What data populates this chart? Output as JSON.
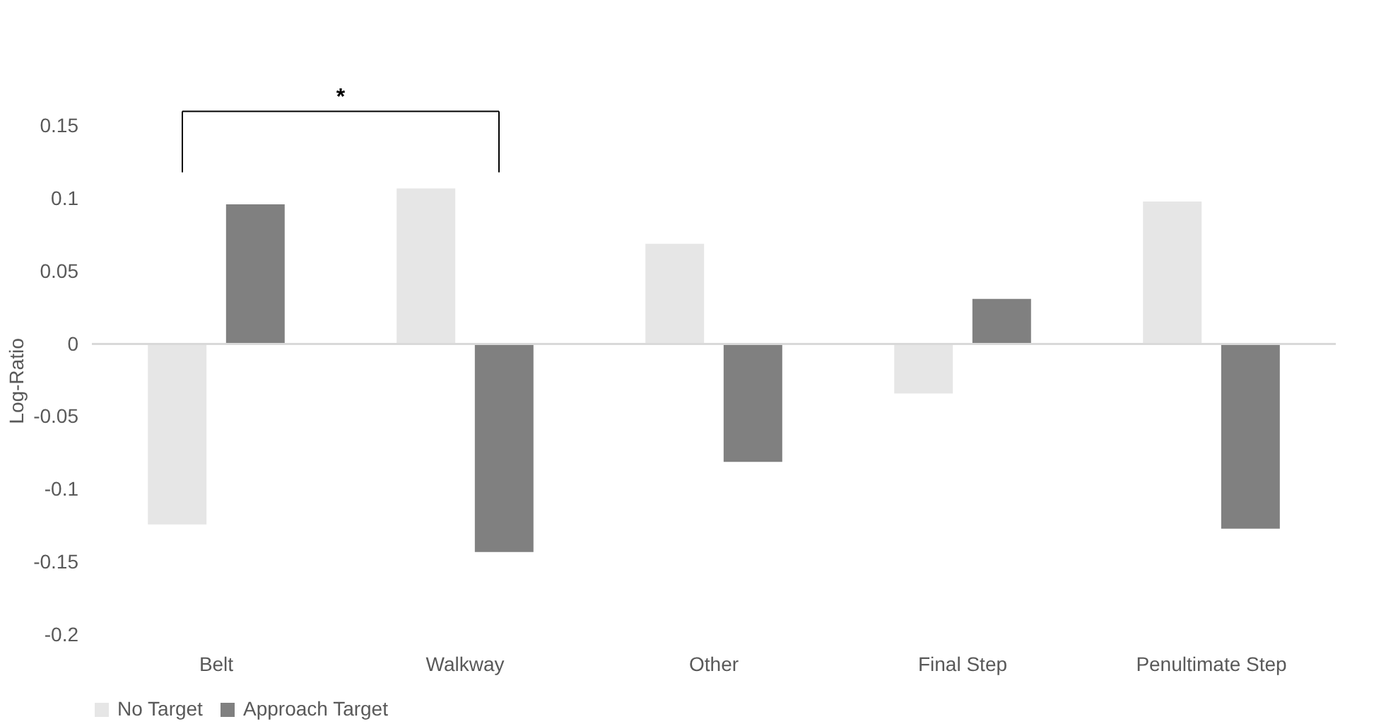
{
  "chart_data": {
    "type": "bar",
    "ylabel": "Log-Ratio",
    "categories": [
      "Belt",
      "Walkway",
      "Other",
      "Final Step",
      "Penultimate Step"
    ],
    "series": [
      {
        "name": "No Target",
        "color": "#e6e6e6",
        "values": [
          -0.124,
          0.107,
          0.069,
          -0.034,
          0.098
        ]
      },
      {
        "name": "Approach Target",
        "color": "#808080",
        "values": [
          0.096,
          -0.143,
          -0.081,
          0.031,
          -0.127
        ]
      }
    ],
    "ylim": [
      -0.2,
      0.15
    ],
    "ref_lines": [
      {
        "axis": "y",
        "value": 0,
        "color": "#d9d9d9"
      }
    ],
    "yticks": [
      -0.2,
      -0.15,
      -0.1,
      -0.05,
      0,
      0.05,
      0.1,
      0.15
    ],
    "grid": false,
    "legend": "bottom",
    "annotations": [
      "*"
    ]
  }
}
